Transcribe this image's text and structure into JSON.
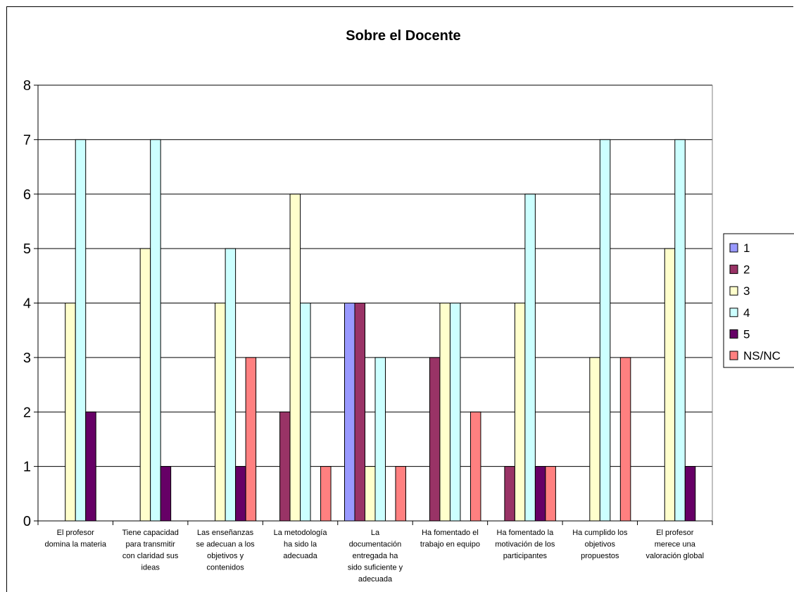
{
  "chart_data": {
    "type": "bar",
    "title": "Sobre el Docente",
    "xlabel": "",
    "ylabel": "",
    "ylim": [
      0,
      8
    ],
    "yticks": [
      0,
      1,
      2,
      3,
      4,
      5,
      6,
      7,
      8
    ],
    "grid": true,
    "legend_position": "right",
    "categories": [
      [
        "El profesor",
        "domina la materia"
      ],
      [
        "Tiene capacidad",
        "para transmitir",
        "con claridad sus",
        "ideas"
      ],
      [
        "Las enseñanzas",
        "se adecuan a los",
        "objetivos y",
        "contenidos"
      ],
      [
        "La metodología",
        "ha sido la",
        "adecuada"
      ],
      [
        "La",
        "documentación",
        "entregada ha",
        "sido suficiente y",
        "adecuada"
      ],
      [
        "Ha fomentado el",
        "trabajo en equipo"
      ],
      [
        "Ha fomentado la",
        "motivación de los",
        "participantes"
      ],
      [
        "Ha cumplido los",
        "objetivos",
        "propuestos"
      ],
      [
        "El profesor",
        "merece una",
        "valoración global"
      ]
    ],
    "series": [
      {
        "name": "1",
        "color": "#9999ff",
        "values": [
          0,
          0,
          0,
          0,
          4,
          0,
          0,
          0,
          0
        ]
      },
      {
        "name": "2",
        "color": "#993366",
        "values": [
          0,
          0,
          0,
          2,
          4,
          3,
          1,
          0,
          0
        ]
      },
      {
        "name": "3",
        "color": "#ffffcc",
        "values": [
          4,
          5,
          4,
          6,
          1,
          4,
          4,
          3,
          5
        ]
      },
      {
        "name": "4",
        "color": "#ccffff",
        "values": [
          7,
          7,
          5,
          4,
          3,
          4,
          6,
          7,
          7
        ]
      },
      {
        "name": "5",
        "color": "#660066",
        "values": [
          2,
          1,
          1,
          0,
          0,
          0,
          1,
          0,
          1
        ]
      },
      {
        "name": "NS/NC",
        "color": "#ff8080",
        "values": [
          0,
          0,
          3,
          1,
          1,
          2,
          1,
          3,
          0
        ]
      }
    ]
  }
}
